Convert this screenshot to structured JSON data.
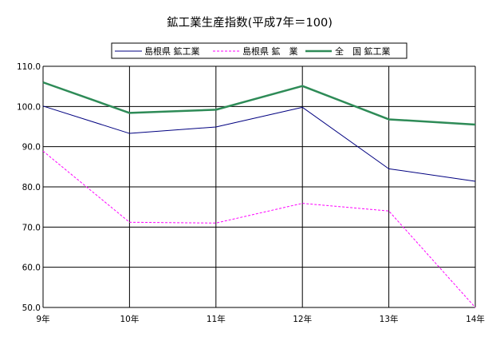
{
  "chart_data": {
    "type": "line",
    "title": "鉱工業生産指数(平成7年＝100)",
    "xlabel": "",
    "ylabel": "",
    "categories": [
      "9年",
      "10年",
      "11年",
      "12年",
      "13年",
      "14年"
    ],
    "ylim": [
      50,
      110
    ],
    "yticks": [
      "50.0",
      "60.0",
      "70.0",
      "80.0",
      "90.0",
      "100.0",
      "110.0"
    ],
    "grid": true,
    "legend_position": "top-center",
    "series": [
      {
        "name": "島根県 鉱工業",
        "color": "#000080",
        "style": "solid",
        "values": [
          100.1,
          93.3,
          94.9,
          99.8,
          84.5,
          81.4
        ]
      },
      {
        "name": "島根県 鉱　業",
        "color": "#ff00ff",
        "style": "dashed",
        "values": [
          88.9,
          71.2,
          71.0,
          75.9,
          74.0,
          50.0
        ]
      },
      {
        "name": "全　国 鉱工業",
        "color": "#2e8b57",
        "style": "solid-thick",
        "values": [
          106.0,
          98.4,
          99.2,
          105.1,
          96.8,
          95.5
        ]
      }
    ]
  }
}
